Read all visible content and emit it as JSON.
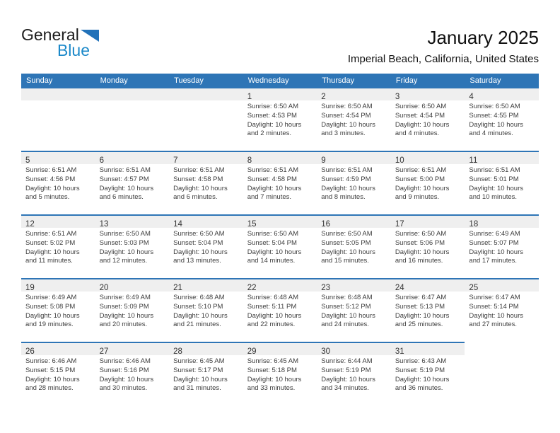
{
  "logo": {
    "part1": "General",
    "part2": "Blue",
    "triangle_color": "#2272b9",
    "blue_color": "#1c89c9"
  },
  "header": {
    "title": "January 2025",
    "subtitle": "Imperial Beach, California, United States"
  },
  "colors": {
    "header_bar": "#2e75b6",
    "week_border": "#2e75b6",
    "number_strip": "#efefef"
  },
  "calendar": {
    "day_headers": [
      "Sunday",
      "Monday",
      "Tuesday",
      "Wednesday",
      "Thursday",
      "Friday",
      "Saturday"
    ],
    "weeks": [
      {
        "cells": [
          null,
          null,
          null,
          {
            "day": "1",
            "lines": [
              "Sunrise: 6:50 AM",
              "Sunset: 4:53 PM",
              "Daylight: 10 hours and 2 minutes."
            ]
          },
          {
            "day": "2",
            "lines": [
              "Sunrise: 6:50 AM",
              "Sunset: 4:54 PM",
              "Daylight: 10 hours and 3 minutes."
            ]
          },
          {
            "day": "3",
            "lines": [
              "Sunrise: 6:50 AM",
              "Sunset: 4:54 PM",
              "Daylight: 10 hours and 4 minutes."
            ]
          },
          {
            "day": "4",
            "lines": [
              "Sunrise: 6:50 AM",
              "Sunset: 4:55 PM",
              "Daylight: 10 hours and 4 minutes."
            ]
          }
        ]
      },
      {
        "cells": [
          {
            "day": "5",
            "lines": [
              "Sunrise: 6:51 AM",
              "Sunset: 4:56 PM",
              "Daylight: 10 hours and 5 minutes."
            ]
          },
          {
            "day": "6",
            "lines": [
              "Sunrise: 6:51 AM",
              "Sunset: 4:57 PM",
              "Daylight: 10 hours and 6 minutes."
            ]
          },
          {
            "day": "7",
            "lines": [
              "Sunrise: 6:51 AM",
              "Sunset: 4:58 PM",
              "Daylight: 10 hours and 6 minutes."
            ]
          },
          {
            "day": "8",
            "lines": [
              "Sunrise: 6:51 AM",
              "Sunset: 4:58 PM",
              "Daylight: 10 hours and 7 minutes."
            ]
          },
          {
            "day": "9",
            "lines": [
              "Sunrise: 6:51 AM",
              "Sunset: 4:59 PM",
              "Daylight: 10 hours and 8 minutes."
            ]
          },
          {
            "day": "10",
            "lines": [
              "Sunrise: 6:51 AM",
              "Sunset: 5:00 PM",
              "Daylight: 10 hours and 9 minutes."
            ]
          },
          {
            "day": "11",
            "lines": [
              "Sunrise: 6:51 AM",
              "Sunset: 5:01 PM",
              "Daylight: 10 hours and 10 minutes."
            ]
          }
        ]
      },
      {
        "cells": [
          {
            "day": "12",
            "lines": [
              "Sunrise: 6:51 AM",
              "Sunset: 5:02 PM",
              "Daylight: 10 hours and 11 minutes."
            ]
          },
          {
            "day": "13",
            "lines": [
              "Sunrise: 6:50 AM",
              "Sunset: 5:03 PM",
              "Daylight: 10 hours and 12 minutes."
            ]
          },
          {
            "day": "14",
            "lines": [
              "Sunrise: 6:50 AM",
              "Sunset: 5:04 PM",
              "Daylight: 10 hours and 13 minutes."
            ]
          },
          {
            "day": "15",
            "lines": [
              "Sunrise: 6:50 AM",
              "Sunset: 5:04 PM",
              "Daylight: 10 hours and 14 minutes."
            ]
          },
          {
            "day": "16",
            "lines": [
              "Sunrise: 6:50 AM",
              "Sunset: 5:05 PM",
              "Daylight: 10 hours and 15 minutes."
            ]
          },
          {
            "day": "17",
            "lines": [
              "Sunrise: 6:50 AM",
              "Sunset: 5:06 PM",
              "Daylight: 10 hours and 16 minutes."
            ]
          },
          {
            "day": "18",
            "lines": [
              "Sunrise: 6:49 AM",
              "Sunset: 5:07 PM",
              "Daylight: 10 hours and 17 minutes."
            ]
          }
        ]
      },
      {
        "cells": [
          {
            "day": "19",
            "lines": [
              "Sunrise: 6:49 AM",
              "Sunset: 5:08 PM",
              "Daylight: 10 hours and 19 minutes."
            ]
          },
          {
            "day": "20",
            "lines": [
              "Sunrise: 6:49 AM",
              "Sunset: 5:09 PM",
              "Daylight: 10 hours and 20 minutes."
            ]
          },
          {
            "day": "21",
            "lines": [
              "Sunrise: 6:48 AM",
              "Sunset: 5:10 PM",
              "Daylight: 10 hours and 21 minutes."
            ]
          },
          {
            "day": "22",
            "lines": [
              "Sunrise: 6:48 AM",
              "Sunset: 5:11 PM",
              "Daylight: 10 hours and 22 minutes."
            ]
          },
          {
            "day": "23",
            "lines": [
              "Sunrise: 6:48 AM",
              "Sunset: 5:12 PM",
              "Daylight: 10 hours and 24 minutes."
            ]
          },
          {
            "day": "24",
            "lines": [
              "Sunrise: 6:47 AM",
              "Sunset: 5:13 PM",
              "Daylight: 10 hours and 25 minutes."
            ]
          },
          {
            "day": "25",
            "lines": [
              "Sunrise: 6:47 AM",
              "Sunset: 5:14 PM",
              "Daylight: 10 hours and 27 minutes."
            ]
          }
        ]
      },
      {
        "cells": [
          {
            "day": "26",
            "lines": [
              "Sunrise: 6:46 AM",
              "Sunset: 5:15 PM",
              "Daylight: 10 hours and 28 minutes."
            ]
          },
          {
            "day": "27",
            "lines": [
              "Sunrise: 6:46 AM",
              "Sunset: 5:16 PM",
              "Daylight: 10 hours and 30 minutes."
            ]
          },
          {
            "day": "28",
            "lines": [
              "Sunrise: 6:45 AM",
              "Sunset: 5:17 PM",
              "Daylight: 10 hours and 31 minutes."
            ]
          },
          {
            "day": "29",
            "lines": [
              "Sunrise: 6:45 AM",
              "Sunset: 5:18 PM",
              "Daylight: 10 hours and 33 minutes."
            ]
          },
          {
            "day": "30",
            "lines": [
              "Sunrise: 6:44 AM",
              "Sunset: 5:19 PM",
              "Daylight: 10 hours and 34 minutes."
            ]
          },
          {
            "day": "31",
            "lines": [
              "Sunrise: 6:43 AM",
              "Sunset: 5:19 PM",
              "Daylight: 10 hours and 36 minutes."
            ]
          },
          null
        ]
      }
    ]
  }
}
